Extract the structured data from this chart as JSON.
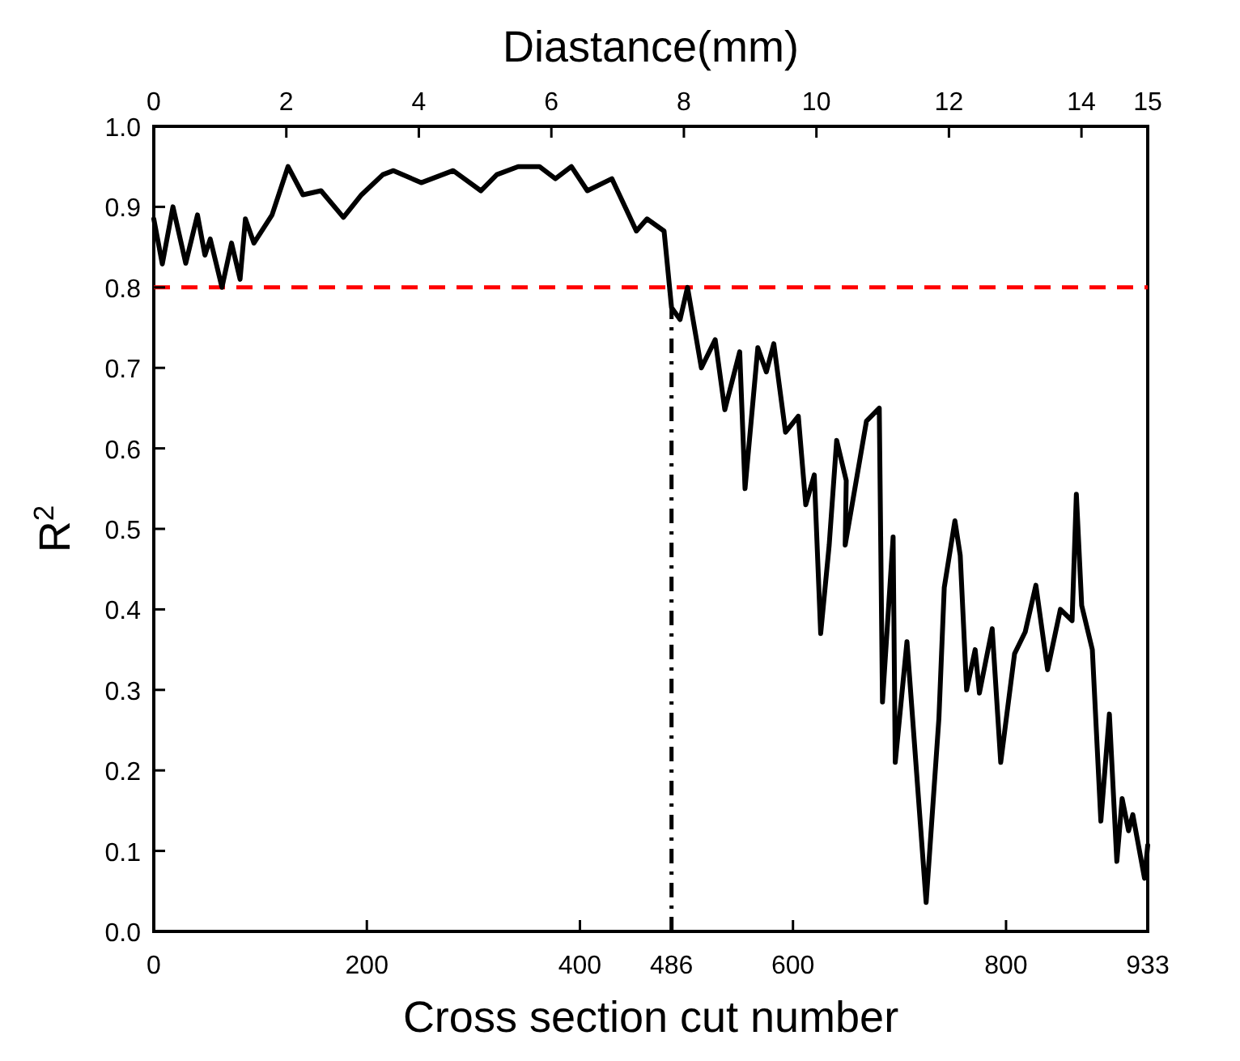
{
  "chart_data": {
    "type": "line",
    "xlabel": "Cross section cut number",
    "ylabel": "R$^{2}$",
    "x2label": "Diastance(mm)",
    "xlim": [
      0,
      933
    ],
    "xticks": [
      0,
      200,
      400,
      486,
      600,
      800,
      933
    ],
    "x2lim": [
      0,
      15
    ],
    "x2ticks": [
      0,
      2,
      4,
      6,
      8,
      10,
      12,
      14,
      15
    ],
    "ylim": [
      0,
      1
    ],
    "yticks": [
      {
        "value": 0,
        "label": "0.0"
      },
      {
        "value": 0.1,
        "label": "0.1"
      },
      {
        "value": 0.2,
        "label": "0.2"
      },
      {
        "value": 0.3,
        "label": "0.3"
      },
      {
        "value": 0.4,
        "label": "0.4"
      },
      {
        "value": 0.5,
        "label": "0.5"
      },
      {
        "value": 0.6,
        "label": "0.6"
      },
      {
        "value": 0.7,
        "label": "0.7"
      },
      {
        "value": 0.8,
        "label": "0.8"
      },
      {
        "value": 0.9,
        "label": "0.9"
      },
      {
        "value": 1,
        "label": "1.0"
      }
    ],
    "grid": false,
    "marker": "none",
    "line_style": "solid",
    "x": [
      0,
      8,
      18,
      30,
      41,
      48,
      53,
      64,
      73,
      81,
      86,
      94,
      111,
      126,
      140,
      157,
      178,
      195,
      215,
      225,
      251,
      281,
      307,
      322,
      342,
      362,
      377,
      392,
      407,
      430,
      453,
      463,
      479,
      486,
      494,
      501,
      514,
      527,
      536,
      550,
      555,
      567,
      575,
      582,
      593,
      605,
      612,
      620,
      626,
      634,
      641,
      650,
      649,
      669,
      681,
      684,
      694,
      696,
      707,
      725,
      737,
      742,
      752,
      757,
      763,
      771,
      775,
      787,
      795,
      808,
      818,
      828,
      839,
      851,
      862,
      866,
      871,
      881,
      889,
      897,
      904,
      909,
      915,
      919,
      930,
      933
    ],
    "series": [
      {
        "color": "#000000",
        "values": [
          0.885,
          0.829,
          0.9,
          0.83,
          0.89,
          0.84,
          0.86,
          0.8,
          0.855,
          0.81,
          0.885,
          0.855,
          0.89,
          0.95,
          0.915,
          0.92,
          0.887,
          0.915,
          0.94,
          0.945,
          0.93,
          0.945,
          0.92,
          0.94,
          0.95,
          0.95,
          0.935,
          0.95,
          0.92,
          0.935,
          0.87,
          0.885,
          0.87,
          0.775,
          0.76,
          0.8,
          0.7,
          0.735,
          0.648,
          0.72,
          0.55,
          0.725,
          0.695,
          0.73,
          0.62,
          0.64,
          0.53,
          0.567,
          0.37,
          0.48,
          0.61,
          0.56,
          0.48,
          0.634,
          0.65,
          0.285,
          0.49,
          0.21,
          0.36,
          0.036,
          0.265,
          0.427,
          0.51,
          0.467,
          0.3,
          0.35,
          0.296,
          0.376,
          0.21,
          0.345,
          0.372,
          0.43,
          0.325,
          0.4,
          0.386,
          0.543,
          0.405,
          0.35,
          0.137,
          0.27,
          0.087,
          0.165,
          0.125,
          0.145,
          0.066,
          0.107
        ]
      }
    ],
    "ref_lines": [
      {
        "axis": "y",
        "value": 0.8,
        "color": "#ff0000",
        "line_style": "dashed"
      },
      {
        "axis": "x",
        "value": 486,
        "color": "#000000",
        "line_style": "dashdot"
      }
    ]
  }
}
